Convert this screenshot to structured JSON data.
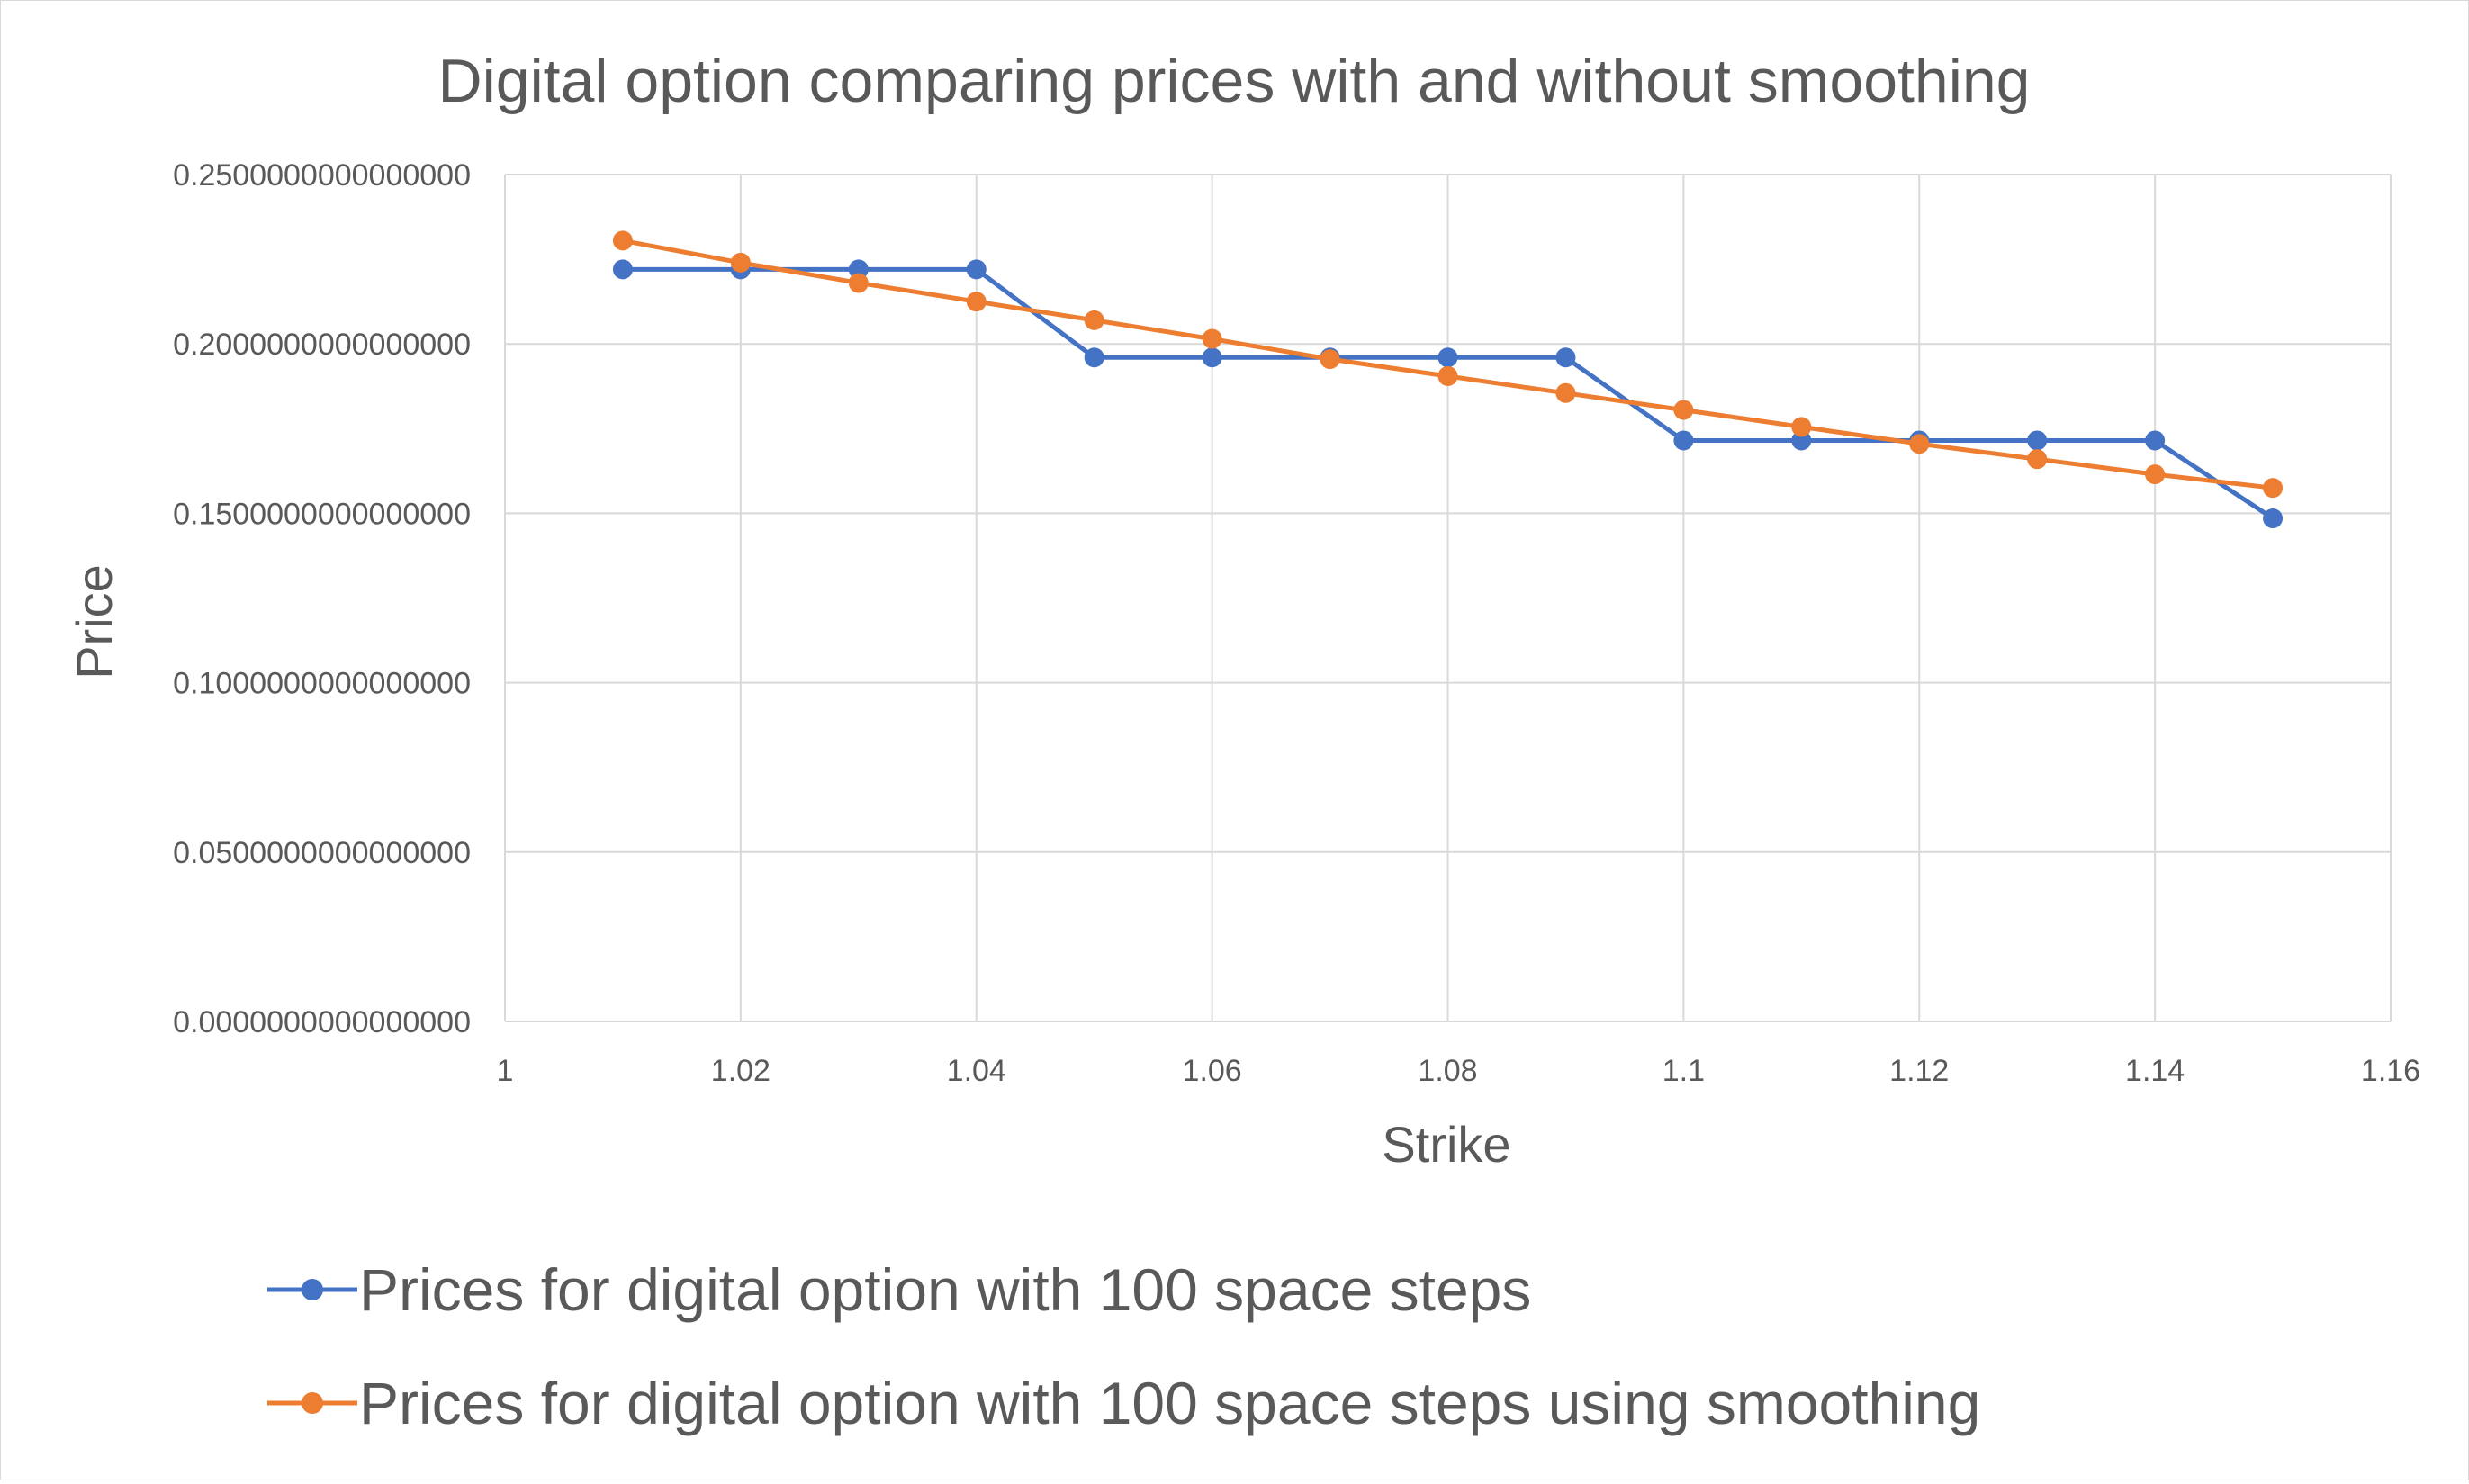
{
  "chart_data": {
    "type": "scatter",
    "title": "Digital option comparing prices with and without smoothing",
    "xlabel": "Strike",
    "ylabel": "Price",
    "xlim": [
      1,
      1.16
    ],
    "ylim": [
      0,
      0.25
    ],
    "x_ticks": [
      "1",
      "1.02",
      "1.04",
      "1.06",
      "1.08",
      "1.1",
      "1.12",
      "1.14",
      "1.16"
    ],
    "y_ticks": [
      "0.0000000000000000",
      "0.0500000000000000",
      "0.1000000000000000",
      "0.1500000000000000",
      "0.2000000000000000",
      "0.2500000000000000"
    ],
    "grid": true,
    "legend_position": "bottom",
    "x": [
      1.01,
      1.02,
      1.03,
      1.04,
      1.05,
      1.06,
      1.07,
      1.08,
      1.09,
      1.1,
      1.11,
      1.12,
      1.13,
      1.14,
      1.15
    ],
    "series": [
      {
        "name": "Prices for digital option with 100 space steps",
        "color": "#4472c4",
        "values": [
          0.222,
          0.222,
          0.222,
          0.222,
          0.196,
          0.196,
          0.196,
          0.196,
          0.196,
          0.1715,
          0.1715,
          0.1715,
          0.1715,
          0.1715,
          0.1485
        ]
      },
      {
        "name": "Prices for digital option with 100 space steps using smoothing",
        "color": "#ed7d31",
        "values": [
          0.2305,
          0.224,
          0.218,
          0.2125,
          0.207,
          0.2015,
          0.1955,
          0.1905,
          0.1855,
          0.1805,
          0.1755,
          0.1705,
          0.166,
          0.1615,
          0.1575
        ]
      }
    ]
  }
}
